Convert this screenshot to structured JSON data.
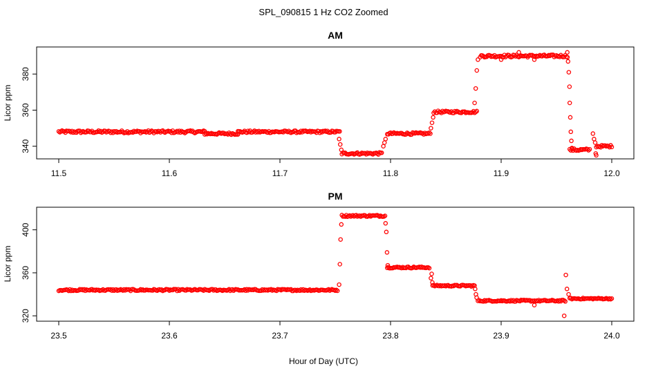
{
  "figure": {
    "title": "SPL_090815  1 Hz CO2 Zoomed",
    "xlabel": "Hour of Day (UTC)"
  },
  "chart_data": [
    {
      "type": "scatter",
      "title": "AM",
      "xlabel": "",
      "ylabel": "Licor ppm",
      "xlim": [
        11.48,
        12.02
      ],
      "ylim": [
        333,
        395
      ],
      "xticks": [
        11.5,
        11.6,
        11.7,
        11.8,
        11.9,
        12.0
      ],
      "xtick_labels": [
        "11.5",
        "11.6",
        "11.7",
        "11.8",
        "11.9",
        "12.0"
      ],
      "yticks": [
        340,
        360,
        380
      ],
      "ytick_labels": [
        "340",
        "360",
        "380"
      ],
      "marker_color": "#ff0000",
      "grid": false,
      "series": [
        {
          "segments": [
            {
              "x0": 11.5,
              "x1": 11.632,
              "y": 348,
              "noise": 0.7,
              "step": 0.001
            },
            {
              "x0": 11.632,
              "x1": 11.662,
              "y": 347,
              "noise": 0.6,
              "step": 0.001
            },
            {
              "x0": 11.662,
              "x1": 11.754,
              "y": 348,
              "noise": 0.6,
              "step": 0.001
            },
            {
              "x0": 11.756,
              "x1": 11.792,
              "y": 336,
              "noise": 0.6,
              "step": 0.001
            },
            {
              "x0": 11.797,
              "x1": 11.836,
              "y": 347,
              "noise": 0.6,
              "step": 0.001
            },
            {
              "x0": 11.839,
              "x1": 11.878,
              "y": 359,
              "noise": 0.6,
              "step": 0.001
            },
            {
              "x0": 11.881,
              "x1": 11.96,
              "y": 390,
              "noise": 0.7,
              "step": 0.001
            },
            {
              "x0": 11.962,
              "x1": 11.98,
              "y": 338,
              "noise": 0.7,
              "step": 0.001
            },
            {
              "x0": 11.986,
              "x1": 12.0,
              "y": 340,
              "noise": 0.6,
              "step": 0.001
            }
          ],
          "points": [
            [
              11.7535,
              344
            ],
            [
              11.7545,
              341
            ],
            [
              11.7555,
              338
            ],
            [
              11.7935,
              340
            ],
            [
              11.7945,
              342
            ],
            [
              11.7955,
              344
            ],
            [
              11.8365,
              350
            ],
            [
              11.8375,
              353
            ],
            [
              11.8385,
              356
            ],
            [
              11.876,
              364
            ],
            [
              11.877,
              372
            ],
            [
              11.878,
              382
            ],
            [
              11.879,
              388
            ],
            [
              11.916,
              392
            ],
            [
              11.93,
              388
            ],
            [
              11.9,
              388
            ],
            [
              11.9598,
              392
            ],
            [
              11.9605,
              387
            ],
            [
              11.9612,
              381
            ],
            [
              11.9618,
              373
            ],
            [
              11.962,
              364
            ],
            [
              11.9625,
              356
            ],
            [
              11.963,
              348
            ],
            [
              11.9635,
              343
            ],
            [
              11.964,
              339
            ],
            [
              11.983,
              347
            ],
            [
              11.984,
              344
            ],
            [
              11.985,
              342
            ],
            [
              11.9855,
              336
            ],
            [
              11.986,
              335
            ]
          ]
        }
      ]
    },
    {
      "type": "scatter",
      "title": "PM",
      "xlabel": "",
      "ylabel": "Licor ppm",
      "xlim": [
        23.48,
        24.02
      ],
      "ylim": [
        315,
        421
      ],
      "xticks": [
        23.5,
        23.6,
        23.7,
        23.8,
        23.9,
        24.0
      ],
      "xtick_labels": [
        "23.5",
        "23.6",
        "23.7",
        "23.8",
        "23.9",
        "24.0"
      ],
      "yticks": [
        320,
        360,
        400
      ],
      "ytick_labels": [
        "320",
        "360",
        "400"
      ],
      "marker_color": "#ff0000",
      "grid": false,
      "series": [
        {
          "segments": [
            {
              "x0": 23.5,
              "x1": 23.752,
              "y": 344,
              "noise": 0.8,
              "step": 0.001
            },
            {
              "x0": 23.756,
              "x1": 23.795,
              "y": 413,
              "noise": 0.8,
              "step": 0.001
            },
            {
              "x0": 23.797,
              "x1": 23.835,
              "y": 365,
              "noise": 0.7,
              "step": 0.001
            },
            {
              "x0": 23.838,
              "x1": 23.876,
              "y": 348,
              "noise": 0.7,
              "step": 0.001
            },
            {
              "x0": 23.879,
              "x1": 23.958,
              "y": 334,
              "noise": 0.7,
              "step": 0.001
            },
            {
              "x0": 23.962,
              "x1": 24.0,
              "y": 336,
              "noise": 0.6,
              "step": 0.001
            }
          ],
          "points": [
            [
              23.7535,
              349
            ],
            [
              23.7542,
              368
            ],
            [
              23.7548,
              391
            ],
            [
              23.7555,
              405
            ],
            [
              23.7955,
              406
            ],
            [
              23.7962,
              398
            ],
            [
              23.7968,
              379
            ],
            [
              23.7975,
              367
            ],
            [
              23.8365,
              355
            ],
            [
              23.8372,
              359
            ],
            [
              23.8378,
              351
            ],
            [
              23.8765,
              345
            ],
            [
              23.8772,
              340
            ],
            [
              23.8778,
              337
            ],
            [
              23.93,
              330
            ],
            [
              23.957,
              320
            ],
            [
              23.9585,
              358
            ],
            [
              23.9595,
              345
            ],
            [
              23.961,
              340
            ]
          ]
        }
      ]
    }
  ]
}
